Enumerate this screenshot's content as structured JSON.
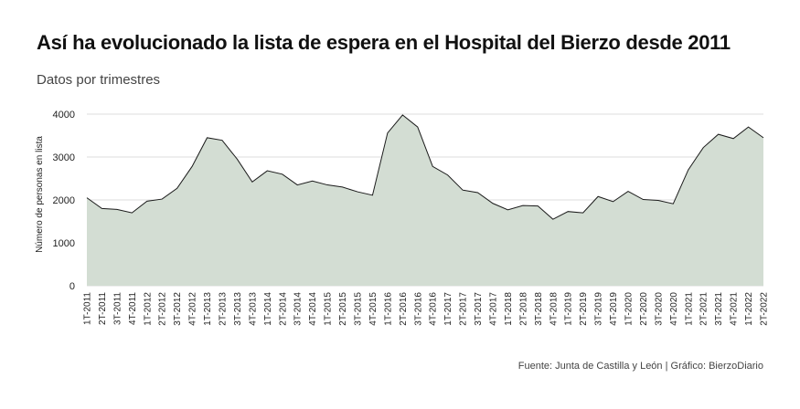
{
  "header": {
    "title": "Así ha evolucionado la lista de espera en el Hospital del Bierzo desde 2011",
    "subtitle": "Datos por trimestres"
  },
  "footer": {
    "source": "Fuente: Junta de Castilla y León | Gráfico: BierzoDiario"
  },
  "chart_data": {
    "type": "area",
    "title": "Así ha evolucionado la lista de espera en el Hospital del Bierzo desde 2011",
    "subtitle": "Datos por trimestres",
    "xlabel": "",
    "ylabel": "Número de personas en lista",
    "ylim": [
      0,
      4000
    ],
    "yticks": [
      0,
      1000,
      2000,
      3000,
      4000
    ],
    "grid": true,
    "legend": "none",
    "colors": {
      "fill": "#d3ddd3",
      "line": "#1a1a1a"
    },
    "categories": [
      "1T-2011",
      "2T-2011",
      "3T-2011",
      "4T-2011",
      "1T-2012",
      "2T-2012",
      "3T-2012",
      "4T-2012",
      "1T-2013",
      "2T-2013",
      "3T-2013",
      "4T-2013",
      "1T-2014",
      "2T-2014",
      "3T-2014",
      "4T-2014",
      "1T-2015",
      "2T-2015",
      "3T-2015",
      "4T-2015",
      "1T-2016",
      "2T-2016",
      "3T-2016",
      "4T-2016",
      "1T-2017",
      "2T-2017",
      "3T-2017",
      "4T-2017",
      "1T-2018",
      "2T-2018",
      "3T-2018",
      "4T-2018",
      "1T-2019",
      "2T-2019",
      "3T-2019",
      "4T-2019",
      "1T-2020",
      "2T-2020",
      "3T-2020",
      "4T-2020",
      "1T-2021",
      "2T-2021",
      "3T-2021",
      "4T-2021",
      "1T-2022",
      "2T-2022"
    ],
    "values": [
      2050,
      1800,
      1780,
      1700,
      1970,
      2020,
      2270,
      2780,
      3450,
      3390,
      2950,
      2420,
      2680,
      2600,
      2350,
      2440,
      2350,
      2300,
      2190,
      2110,
      3560,
      3980,
      3700,
      2780,
      2580,
      2230,
      2170,
      1920,
      1770,
      1870,
      1860,
      1550,
      1730,
      1700,
      2080,
      1960,
      2200,
      2010,
      1990,
      1910,
      2700,
      3220,
      3530,
      3430,
      3700,
      3450
    ]
  }
}
